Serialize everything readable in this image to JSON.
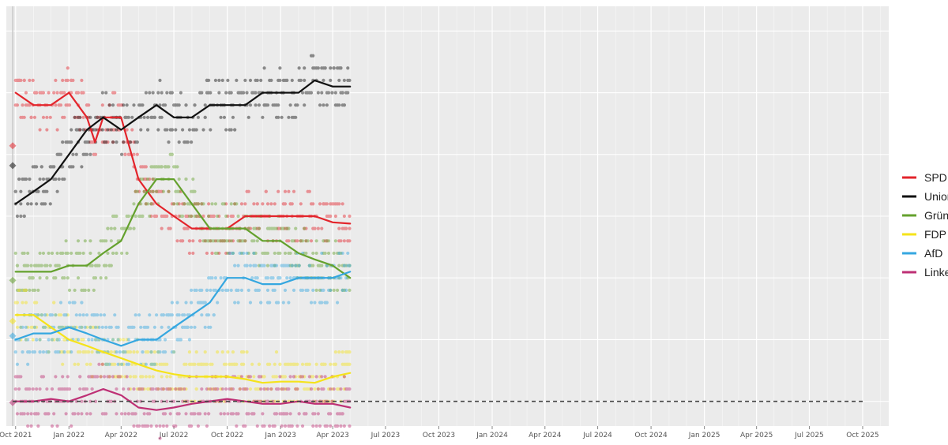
{
  "chart_data": {
    "type": "scatter",
    "title": "",
    "xlabel": "",
    "ylabel": "",
    "x_range": [
      "2021-09-15",
      "2025-11-15"
    ],
    "y_range": [
      3,
      37
    ],
    "x_ticks": [
      "Oct 2021",
      "Jan 2022",
      "Apr 2022",
      "Jul 2022",
      "Oct 2022",
      "Jan 2023",
      "Apr 2023",
      "Jul 2023",
      "Oct 2023",
      "Jan 2024",
      "Apr 2024",
      "Jul 2024",
      "Oct 2024",
      "Jan 2025",
      "Apr 2025",
      "Jul 2025",
      "Oct 2025"
    ],
    "x_tick_dates": [
      "2021-10-01",
      "2022-01-01",
      "2022-04-01",
      "2022-07-01",
      "2022-10-01",
      "2023-01-01",
      "2023-04-01",
      "2023-07-01",
      "2023-10-01",
      "2024-01-01",
      "2024-04-01",
      "2024-07-01",
      "2024-10-01",
      "2025-01-01",
      "2025-04-01",
      "2025-07-01",
      "2025-10-01"
    ],
    "grid": true,
    "legend_position": "right",
    "reference_line": {
      "y": 5,
      "style": "dashed",
      "from": "2021-09-26",
      "to": "2025-10-01"
    },
    "election_marker_date": "2021-09-26",
    "series": [
      {
        "name": "SPD",
        "color": "#e3242b",
        "election_result": 25.7,
        "trend": [
          [
            "2021-10-01",
            30
          ],
          [
            "2021-11-01",
            29
          ],
          [
            "2021-12-01",
            29
          ],
          [
            "2022-01-01",
            30
          ],
          [
            "2022-02-01",
            28
          ],
          [
            "2022-02-15",
            26
          ],
          [
            "2022-03-01",
            28
          ],
          [
            "2022-04-01",
            28
          ],
          [
            "2022-05-01",
            23
          ],
          [
            "2022-06-01",
            21
          ],
          [
            "2022-07-01",
            20
          ],
          [
            "2022-08-01",
            19
          ],
          [
            "2022-09-01",
            19
          ],
          [
            "2022-10-01",
            19
          ],
          [
            "2022-11-01",
            20
          ],
          [
            "2022-12-01",
            20
          ],
          [
            "2023-01-01",
            20
          ],
          [
            "2023-02-01",
            20
          ],
          [
            "2023-03-01",
            20
          ],
          [
            "2023-04-01",
            19.5
          ],
          [
            "2023-05-01",
            19.4
          ]
        ],
        "poll_levels": [
          17,
          18,
          19,
          20,
          21,
          22,
          23,
          24,
          25,
          26,
          27,
          28,
          29,
          30,
          31
        ]
      },
      {
        "name": "Union",
        "color": "#111111",
        "election_result": 24.1,
        "trend": [
          [
            "2021-10-01",
            21
          ],
          [
            "2021-11-01",
            22
          ],
          [
            "2021-12-01",
            23
          ],
          [
            "2022-01-01",
            25
          ],
          [
            "2022-02-01",
            27
          ],
          [
            "2022-03-01",
            28
          ],
          [
            "2022-04-01",
            27
          ],
          [
            "2022-05-01",
            28
          ],
          [
            "2022-06-01",
            29
          ],
          [
            "2022-07-01",
            28
          ],
          [
            "2022-08-01",
            28
          ],
          [
            "2022-09-01",
            29
          ],
          [
            "2022-10-01",
            29
          ],
          [
            "2022-11-01",
            29
          ],
          [
            "2022-12-01",
            30
          ],
          [
            "2023-01-01",
            30
          ],
          [
            "2023-02-01",
            30
          ],
          [
            "2023-03-01",
            31
          ],
          [
            "2023-04-01",
            30.5
          ],
          [
            "2023-05-01",
            30.5
          ]
        ],
        "poll_levels": [
          20,
          21,
          22,
          23,
          24,
          25,
          26,
          27,
          28,
          29,
          30,
          31,
          32,
          33
        ]
      },
      {
        "name": "Grüne",
        "color": "#64a12d",
        "election_result": 14.8,
        "trend": [
          [
            "2021-10-01",
            15.5
          ],
          [
            "2021-11-01",
            15.5
          ],
          [
            "2021-12-01",
            15.5
          ],
          [
            "2022-01-01",
            16
          ],
          [
            "2022-02-01",
            16
          ],
          [
            "2022-03-01",
            17
          ],
          [
            "2022-04-01",
            18
          ],
          [
            "2022-05-01",
            21
          ],
          [
            "2022-06-01",
            23
          ],
          [
            "2022-07-01",
            23
          ],
          [
            "2022-08-01",
            21
          ],
          [
            "2022-09-01",
            19
          ],
          [
            "2022-10-01",
            19
          ],
          [
            "2022-11-01",
            19
          ],
          [
            "2022-12-01",
            18
          ],
          [
            "2023-01-01",
            18
          ],
          [
            "2023-02-01",
            17
          ],
          [
            "2023-03-01",
            16.5
          ],
          [
            "2023-04-01",
            16
          ],
          [
            "2023-05-01",
            15
          ]
        ],
        "poll_levels": [
          14,
          15,
          16,
          17,
          18,
          19,
          20,
          21,
          22,
          23,
          24,
          25
        ]
      },
      {
        "name": "FDP",
        "color": "#f5e31a",
        "election_result": 11.5,
        "trend": [
          [
            "2021-10-01",
            12
          ],
          [
            "2021-11-01",
            12
          ],
          [
            "2021-12-01",
            11
          ],
          [
            "2022-01-01",
            10
          ],
          [
            "2022-02-01",
            9.5
          ],
          [
            "2022-03-01",
            9
          ],
          [
            "2022-04-01",
            8.5
          ],
          [
            "2022-05-01",
            8
          ],
          [
            "2022-06-01",
            7.5
          ],
          [
            "2022-07-01",
            7.2
          ],
          [
            "2022-08-01",
            7
          ],
          [
            "2022-09-01",
            7
          ],
          [
            "2022-10-01",
            7
          ],
          [
            "2022-11-01",
            6.8
          ],
          [
            "2022-12-01",
            6.5
          ],
          [
            "2023-01-01",
            6.6
          ],
          [
            "2023-02-01",
            6.6
          ],
          [
            "2023-03-01",
            6.5
          ],
          [
            "2023-04-01",
            7
          ],
          [
            "2023-05-01",
            7.3
          ]
        ],
        "poll_levels": [
          5,
          6,
          7,
          8,
          9,
          10,
          11,
          12,
          13
        ]
      },
      {
        "name": "AfD",
        "color": "#35a7e0",
        "election_result": 10.3,
        "trend": [
          [
            "2021-10-01",
            10
          ],
          [
            "2021-11-01",
            10.5
          ],
          [
            "2021-12-01",
            10.5
          ],
          [
            "2022-01-01",
            11
          ],
          [
            "2022-02-01",
            10.5
          ],
          [
            "2022-03-01",
            10
          ],
          [
            "2022-04-01",
            9.5
          ],
          [
            "2022-05-01",
            10
          ],
          [
            "2022-06-01",
            10
          ],
          [
            "2022-07-01",
            11
          ],
          [
            "2022-08-01",
            12
          ],
          [
            "2022-09-01",
            13
          ],
          [
            "2022-10-01",
            15
          ],
          [
            "2022-11-01",
            15
          ],
          [
            "2022-12-01",
            14.5
          ],
          [
            "2023-01-01",
            14.5
          ],
          [
            "2023-02-01",
            15
          ],
          [
            "2023-03-01",
            15
          ],
          [
            "2023-04-01",
            15
          ],
          [
            "2023-05-01",
            15.5
          ]
        ],
        "poll_levels": [
          9,
          10,
          11,
          12,
          13,
          14,
          15,
          16
        ]
      },
      {
        "name": "Linke",
        "color": "#be3075",
        "election_result": 4.9,
        "trend": [
          [
            "2021-10-01",
            5
          ],
          [
            "2021-11-01",
            5
          ],
          [
            "2021-12-01",
            5.2
          ],
          [
            "2022-01-01",
            5
          ],
          [
            "2022-02-01",
            5.5
          ],
          [
            "2022-03-01",
            6
          ],
          [
            "2022-04-01",
            5.5
          ],
          [
            "2022-05-01",
            4.5
          ],
          [
            "2022-06-01",
            4.3
          ],
          [
            "2022-07-01",
            4.5
          ],
          [
            "2022-08-01",
            4.8
          ],
          [
            "2022-09-01",
            5
          ],
          [
            "2022-10-01",
            5.2
          ],
          [
            "2022-11-01",
            5
          ],
          [
            "2022-12-01",
            4.8
          ],
          [
            "2023-01-01",
            4.8
          ],
          [
            "2023-02-01",
            5
          ],
          [
            "2023-03-01",
            4.8
          ],
          [
            "2023-04-01",
            4.8
          ],
          [
            "2023-05-01",
            4.5
          ]
        ],
        "poll_levels": [
          4,
          5,
          6
        ]
      }
    ]
  }
}
